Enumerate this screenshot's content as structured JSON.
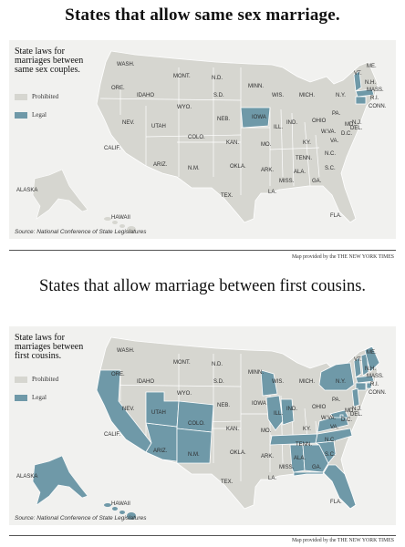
{
  "colors": {
    "prohibited": "#d6d6d0",
    "legal": "#6f99a8",
    "background": "#f1f1ef",
    "border": "#ffffff"
  },
  "map1": {
    "headline": "States that allow same sex marriage.",
    "legend_title": "State laws for marriages between same sex couples.",
    "legend_prohibited": "Prohibited",
    "legend_legal": "Legal",
    "source": "Source: National Conference of State Legislatures",
    "credit": "Map provided by the THE NEW YORK TIMES",
    "legal_states": [
      "IOWA",
      "VT.",
      "MASS.",
      "CONN."
    ]
  },
  "map2": {
    "headline": "States that allow marriage between first cousins.",
    "legend_title": "State laws for marriages between first cousins.",
    "legend_prohibited": "Prohibited",
    "legend_legal": "Legal",
    "source": "Source: National Conference of State Legislatures",
    "credit": "Map provided by the THE NEW YORK TIMES",
    "legal_states": [
      "CALIF.",
      "ARIZ.",
      "UTAH",
      "COLO.",
      "N.M.",
      "WIS.",
      "ILL.",
      "IND.",
      "TENN.",
      "ALA.",
      "GA.",
      "FLA.",
      "S.C.",
      "N.C.",
      "VA.",
      "MD.",
      "N.Y.",
      "VT.",
      "N.H.",
      "ME.",
      "MASS.",
      "R.I.",
      "CONN.",
      "N.J.",
      "D.C.",
      "ALASKA",
      "HAWAII"
    ]
  },
  "state_labels": [
    "WASH.",
    "ORE.",
    "IDAHO",
    "MONT.",
    "WYO.",
    "N.D.",
    "S.D.",
    "NEB.",
    "KAN.",
    "OKLA.",
    "TEX.",
    "MINN.",
    "IOWA",
    "MO.",
    "ARK.",
    "LA.",
    "WIS.",
    "MICH.",
    "ILL.",
    "IND.",
    "OHIO",
    "KY.",
    "TENN.",
    "MISS.",
    "ALA.",
    "GA.",
    "FLA.",
    "S.C.",
    "N.C.",
    "VA.",
    "W.VA.",
    "PA.",
    "N.Y.",
    "VT.",
    "N.H.",
    "ME.",
    "MASS.",
    "R.I.",
    "CONN.",
    "N.J.",
    "DEL.",
    "MD.",
    "D.C.",
    "NEV.",
    "UTAH",
    "COLO.",
    "ARIZ.",
    "N.M.",
    "CALIF.",
    "ALASKA",
    "HAWAII"
  ]
}
